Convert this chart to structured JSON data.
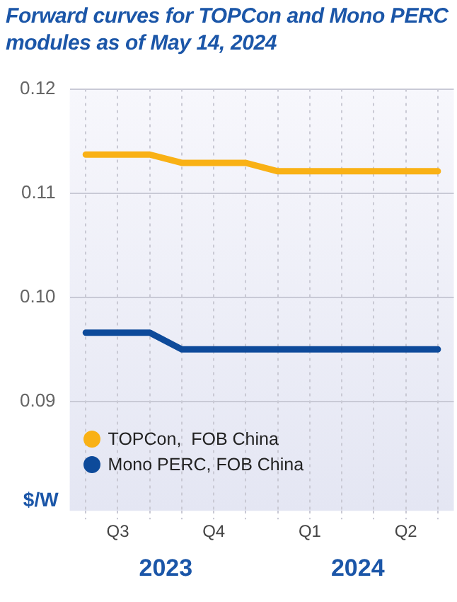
{
  "chart_data": {
    "type": "line",
    "title": "Forward curves for TOPCon and Mono PERC modules as of May 14, 2024",
    "ylabel": "$/W",
    "categories": [
      null,
      "Q3",
      null,
      null,
      "Q4",
      null,
      null,
      "Q1",
      null,
      null,
      "Q2",
      null
    ],
    "series": [
      {
        "name": "TOPCon,  FOB China",
        "color": "#f9b115",
        "values": [
          0.1137,
          0.1137,
          0.1137,
          0.1129,
          0.1129,
          0.1129,
          0.1121,
          0.1121,
          0.1121,
          0.1121,
          0.1121,
          0.1121
        ]
      },
      {
        "name": "Mono PERC, FOB China",
        "color": "#0d4a9a",
        "values": [
          0.0966,
          0.0966,
          0.0966,
          0.095,
          0.095,
          0.095,
          0.095,
          0.095,
          0.095,
          0.095,
          0.095,
          0.095
        ]
      }
    ],
    "annotations": [
      "2023",
      "2024"
    ],
    "ylim": [
      0.0795,
      0.12
    ],
    "yticks": [
      0.09,
      {
        "value": 0.1,
        "label": "0.10"
      },
      0.11,
      0.12
    ],
    "grid": true,
    "legend": "bottom left",
    "marker": "none",
    "line_style": "solid"
  }
}
